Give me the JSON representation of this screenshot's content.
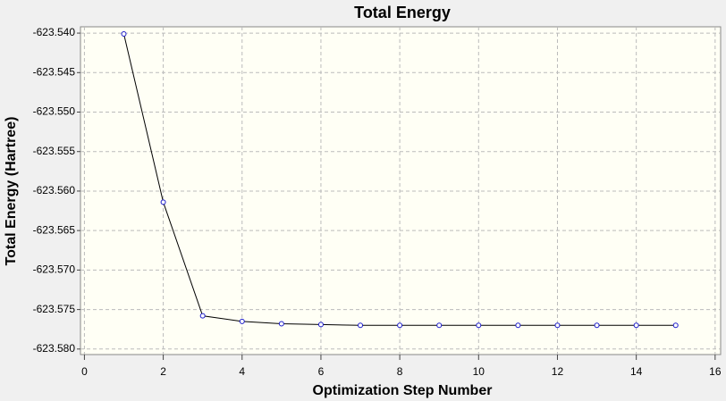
{
  "chart_data": {
    "type": "line",
    "title": "Total Energy",
    "x_label": "Optimization Step Number",
    "y_label": "Total Energy (Hartree)",
    "x": [
      1,
      2,
      3,
      4,
      5,
      6,
      7,
      8,
      9,
      10,
      11,
      12,
      13,
      14,
      15
    ],
    "series": [
      {
        "color": "#000000",
        "marker_color": "#1a1acc",
        "values": [
          -623.5401,
          -623.5614,
          -623.5758,
          -623.5765,
          -623.5768,
          -623.5769,
          -623.577,
          -623.577,
          -623.577,
          -623.577,
          -623.577,
          -623.577,
          -623.577,
          -623.577,
          -623.577
        ]
      }
    ],
    "xlim": [
      -0.1,
      16.14
    ],
    "xticks": [
      0,
      2,
      4,
      6,
      8,
      10,
      12,
      14,
      16
    ],
    "ylim": [
      -623.5807,
      -623.5392
    ],
    "yticks": [
      {
        "value": -623.54,
        "label": "-623.540"
      },
      {
        "value": -623.545,
        "label": "-623.545"
      },
      {
        "value": -623.55,
        "label": "-623.550"
      },
      {
        "value": -623.555,
        "label": "-623.555"
      },
      {
        "value": -623.56,
        "label": "-623.560"
      },
      {
        "value": -623.565,
        "label": "-623.565"
      },
      {
        "value": -623.57,
        "label": "-623.570"
      },
      {
        "value": -623.575,
        "label": "-623.575"
      },
      {
        "value": -623.58,
        "label": "-623.580"
      }
    ],
    "grid": true
  }
}
